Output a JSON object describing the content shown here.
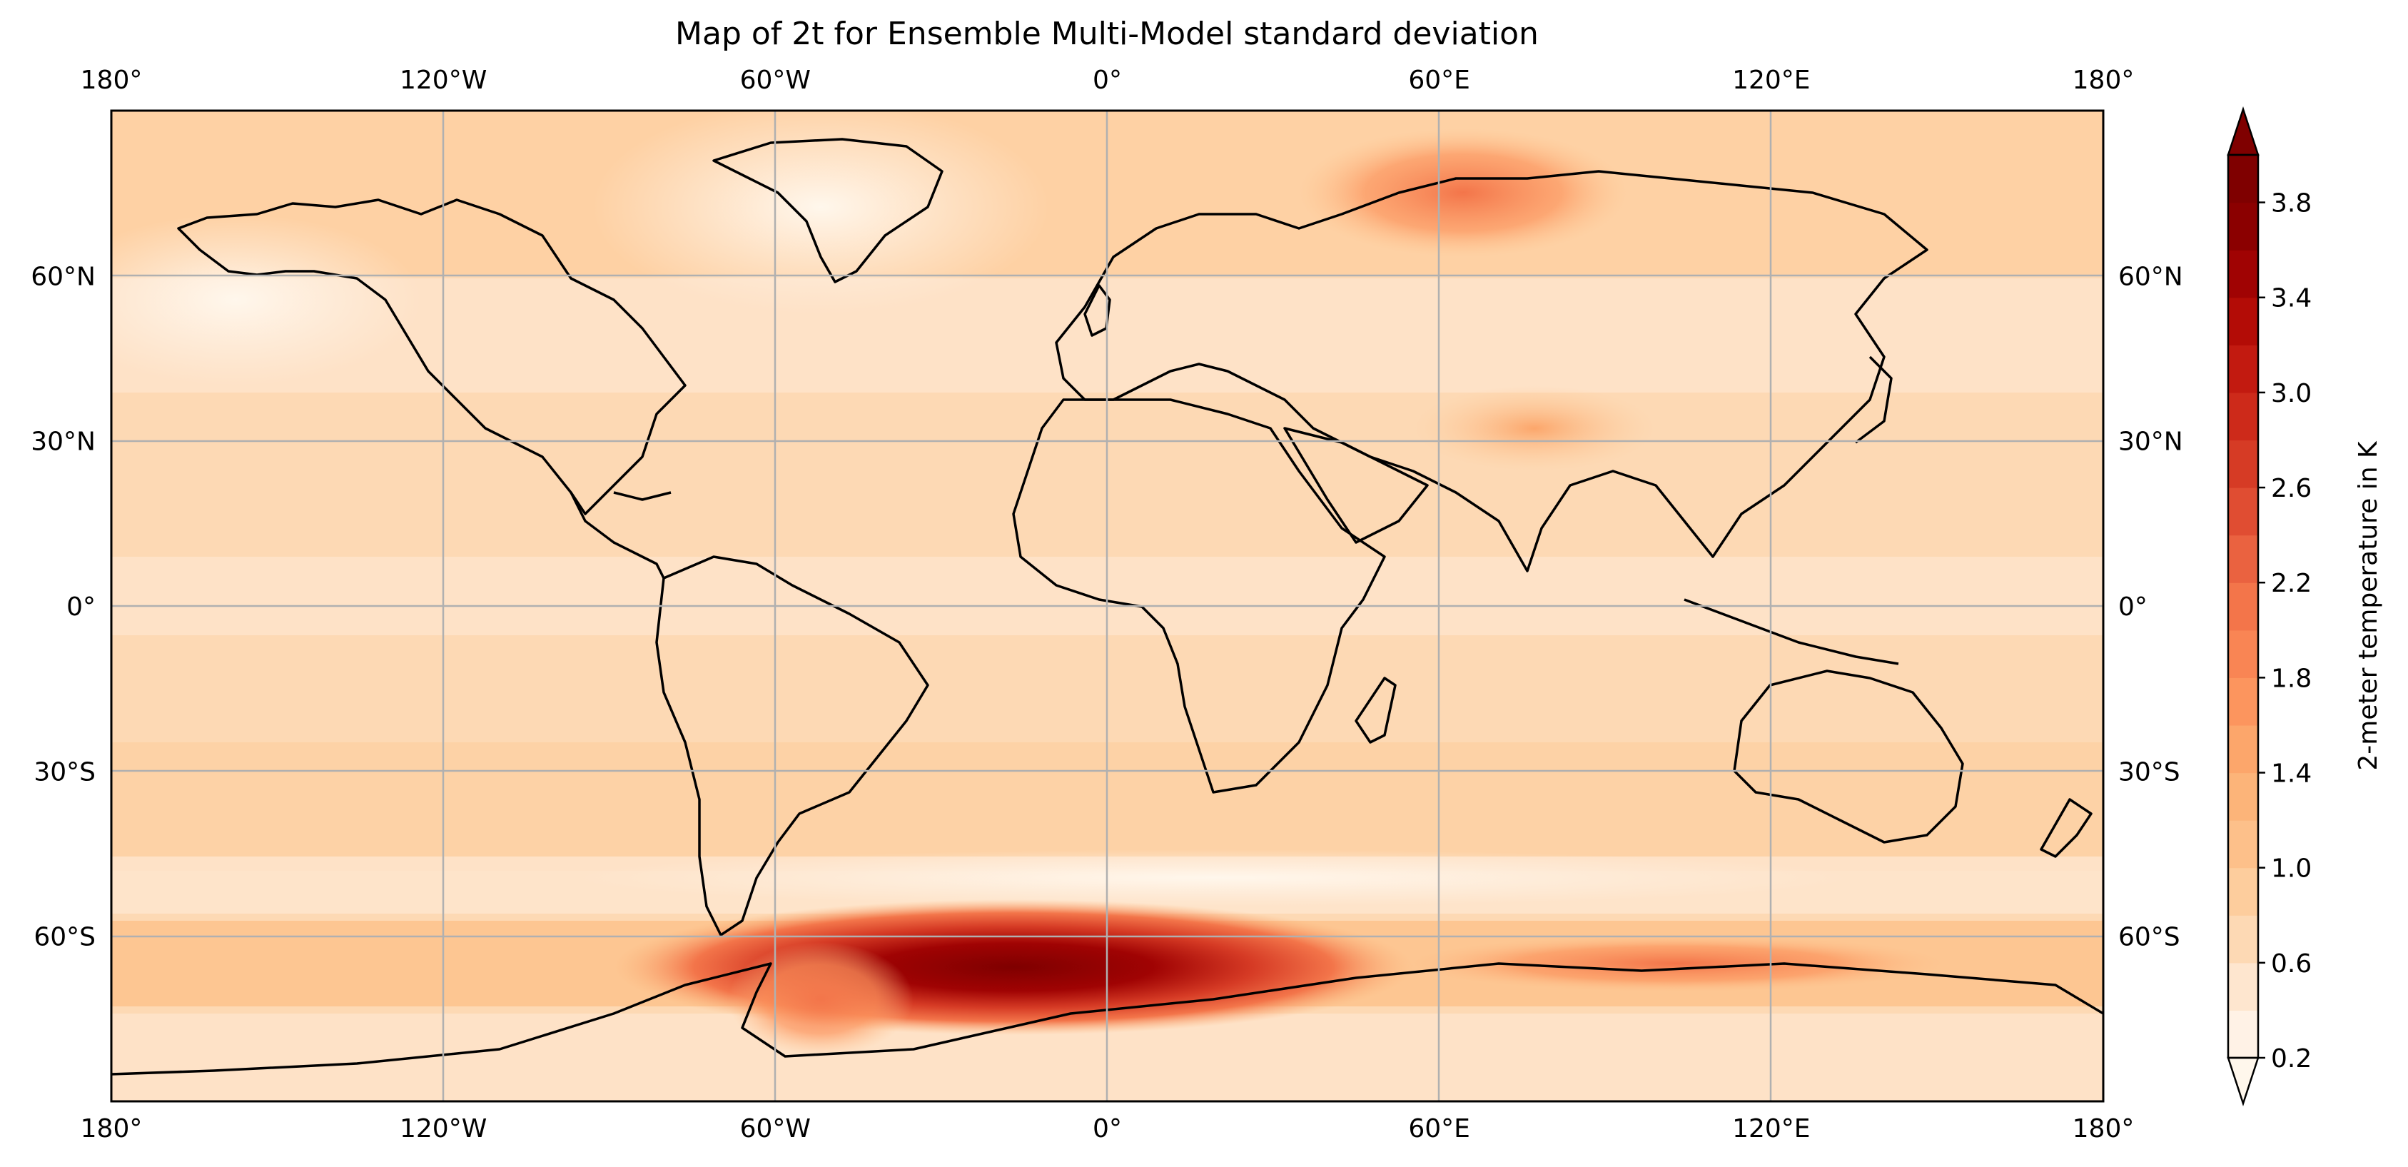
{
  "chart_data": {
    "type": "map",
    "projection": "PlateCarree",
    "title": "Map of 2t for Ensemble Multi-Model standard deviation",
    "grid": true,
    "lon_ticks": [
      {
        "value": -180,
        "label": "180°"
      },
      {
        "value": -120,
        "label": "120°W"
      },
      {
        "value": -60,
        "label": "60°W"
      },
      {
        "value": 0,
        "label": "0°"
      },
      {
        "value": 60,
        "label": "60°E"
      },
      {
        "value": 120,
        "label": "120°E"
      },
      {
        "value": 180,
        "label": "180°"
      }
    ],
    "lat_ticks": [
      {
        "value": 60,
        "label": "60°N"
      },
      {
        "value": 30,
        "label": "30°N"
      },
      {
        "value": 0,
        "label": "0°"
      },
      {
        "value": -30,
        "label": "30°S"
      },
      {
        "value": -60,
        "label": "60°S"
      }
    ],
    "extent": {
      "lon": [
        -180,
        180
      ],
      "lat": [
        -90,
        90
      ]
    },
    "colorbar": {
      "label": "2-meter temperature in K",
      "cmap": "OrRd",
      "extend": "both",
      "levels": [
        0.2,
        0.4,
        0.6,
        0.8,
        1.0,
        1.2,
        1.4,
        1.6,
        1.8,
        2.0,
        2.2,
        2.4,
        2.6,
        2.8,
        3.0,
        3.2,
        3.4,
        3.6,
        3.8,
        4.0
      ],
      "colors": [
        "#fff2e6",
        "#fee6cf",
        "#fdd9b4",
        "#fdcd9d",
        "#fdc08a",
        "#fcb479",
        "#fca66b",
        "#fc955e",
        "#f98554",
        "#f3754a",
        "#ea6240",
        "#e04d32",
        "#d63b25",
        "#cd2a1a",
        "#c21a10",
        "#b30c06",
        "#a00303",
        "#8b0000",
        "#7f0000"
      ],
      "under_color": "#fff7ec",
      "over_color": "#7f0000",
      "tick_labels": [
        "0.2",
        "0.6",
        "1.0",
        "1.4",
        "1.8",
        "2.2",
        "2.6",
        "3.0",
        "3.4",
        "3.8"
      ]
    },
    "field_features": [
      {
        "lon": -10,
        "lat": -70,
        "value": 4.0
      },
      {
        "lon": 70,
        "lat": 72,
        "value": 2.0
      },
      {
        "lon": 100,
        "lat": -65,
        "value": 2.2
      },
      {
        "lon": 80,
        "lat": 32,
        "value": 1.6
      },
      {
        "lon": -40,
        "lat": 70,
        "value": 0.4
      }
    ]
  }
}
